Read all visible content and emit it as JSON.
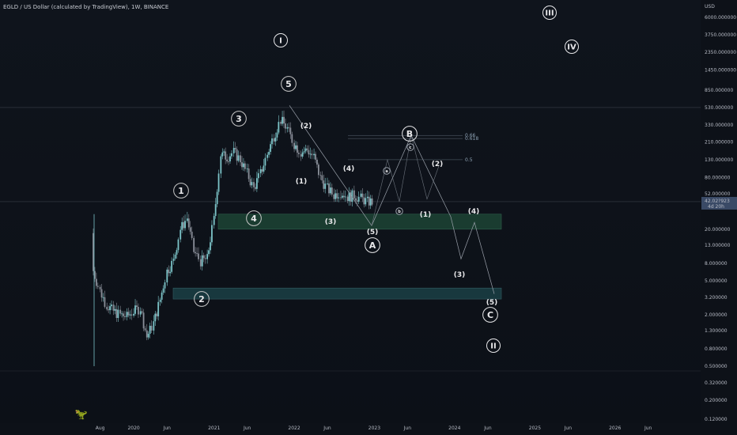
{
  "header": {
    "title": "EGLD / US Dollar (calculated by TradingView), 1W, BINANCE"
  },
  "price_axis": {
    "currency": "USD",
    "ticks": [
      "6000.000000",
      "3750.000000",
      "2350.000000",
      "1450.000000",
      "850.000000",
      "530.000000",
      "330.000000",
      "210.000000",
      "130.000000",
      "80.000000",
      "52.000000",
      "20.000000",
      "13.000000",
      "8.000000",
      "5.000000",
      "3.200000",
      "2.000000",
      "1.300000",
      "0.800000",
      "0.500000",
      "0.320000",
      "0.200000",
      "0.120000"
    ],
    "current_price": "42.02?923",
    "countdown": "4d 20h"
  },
  "time_axis": {
    "ticks": [
      "Aug",
      "2020",
      "Jun",
      "2021",
      "Jun",
      "2022",
      "Jun",
      "2023",
      "Jun",
      "2024",
      "Jun",
      "2025",
      "Jun",
      "2026",
      "Jun"
    ]
  },
  "waves": {
    "cycle": [
      "I",
      "II",
      "III",
      "IV"
    ],
    "primary_impulse": [
      "1",
      "2",
      "3",
      "4",
      "5"
    ],
    "primary_corrective": [
      "A",
      "B",
      "C"
    ],
    "intermediate": [
      "(1)",
      "(2)",
      "(3)",
      "(4)",
      "(5)"
    ]
  },
  "fib_levels": [
    "0.66",
    "0.618",
    "0.5"
  ],
  "colors": {
    "background": "#0d1118",
    "candle_up": "#7cc4c8",
    "candle_down": "#8a8f99",
    "zone": "#1f4a38",
    "zone_border": "#3b7a5c",
    "zone2": "#1a3f45"
  },
  "icons": {
    "watermark": "dinosaur-icon"
  },
  "chart_data": {
    "type": "candlestick",
    "title": "EGLD / US Dollar (calculated by TradingView), 1W, BINANCE",
    "y_scale": "log",
    "ylim": [
      0.12,
      6000
    ],
    "x": [
      "2019-07",
      "2019-08",
      "2019-09",
      "2019-10",
      "2019-11",
      "2019-12",
      "2020-01",
      "2020-02",
      "2020-03",
      "2020-04",
      "2020-05",
      "2020-06",
      "2020-07",
      "2020-08",
      "2020-09",
      "2020-10",
      "2020-11",
      "2020-12",
      "2021-01",
      "2021-02",
      "2021-03",
      "2021-04",
      "2021-05",
      "2021-06",
      "2021-07",
      "2021-08",
      "2021-09",
      "2021-10",
      "2021-11",
      "2021-12",
      "2022-01",
      "2022-02",
      "2022-03",
      "2022-04",
      "2022-05",
      "2022-06",
      "2022-07",
      "2022-08",
      "2022-09",
      "2022-10",
      "2022-11",
      "2022-12"
    ],
    "close": [
      6.5,
      3.8,
      2.6,
      2.2,
      2.0,
      1.9,
      2.2,
      2.4,
      1.1,
      1.6,
      3.0,
      6.5,
      8.5,
      20,
      27,
      11,
      8.5,
      9,
      26,
      150,
      140,
      160,
      130,
      90,
      60,
      90,
      150,
      250,
      380,
      300,
      200,
      160,
      170,
      140,
      80,
      60,
      50,
      55,
      48,
      50,
      46,
      42
    ]
  }
}
